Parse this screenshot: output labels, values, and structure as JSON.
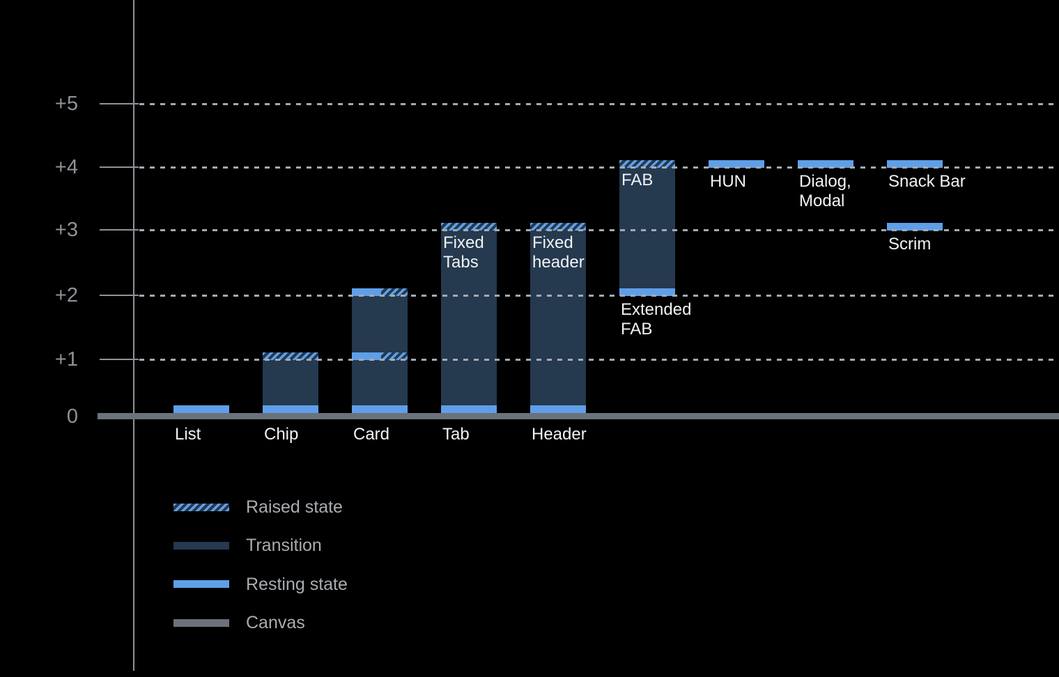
{
  "colors": {
    "background": "#000000",
    "resting_blue": "#5F9FE8",
    "transition_navy": "#25394F",
    "canvas_gray": "#6B727B",
    "axis_gray": "#8E939A",
    "grid_dash": "#A5AAB0",
    "label_white": "#F1F3F4",
    "axis_label_gray": "#8F9398",
    "legend_text_gray": "#A8ACB1"
  },
  "chart_data": {
    "type": "bar",
    "title": "",
    "xlabel": "",
    "ylabel": "",
    "ylim": [
      0,
      5
    ],
    "grid": "dotted horizontal gridlines at +1 through +5, solid canvas baseline at 0",
    "y_axis": {
      "ticks": [
        {
          "label": "+5",
          "level": 5
        },
        {
          "label": "+4",
          "level": 4
        },
        {
          "label": "+3",
          "level": 3
        },
        {
          "label": "+2",
          "level": 2
        },
        {
          "label": "+1",
          "level": 1
        },
        {
          "label": "0",
          "level": 0
        }
      ]
    },
    "components": [
      {
        "name": "list",
        "col": 0,
        "base_level": 0,
        "top_level": 0,
        "caption_lines": [
          "List"
        ],
        "caption_placement": "axis",
        "bands": [
          {
            "level": 0,
            "style": "resting"
          }
        ]
      },
      {
        "name": "chip",
        "col": 1,
        "base_level": 0,
        "top_level": 1,
        "caption_lines": [
          "Chip"
        ],
        "caption_placement": "axis",
        "bands": [
          {
            "level": 0,
            "style": "resting"
          },
          {
            "level": 1,
            "style": "raised"
          }
        ]
      },
      {
        "name": "card",
        "col": 2,
        "base_level": 0,
        "top_level": 2,
        "caption_lines": [
          "Card"
        ],
        "caption_placement": "axis",
        "bands": [
          {
            "level": 0,
            "style": "resting"
          },
          {
            "level": 1,
            "style": "split"
          },
          {
            "level": 2,
            "style": "split"
          }
        ]
      },
      {
        "name": "tab",
        "col": 3,
        "base_level": 0,
        "top_level": 3,
        "caption_lines": [
          "Tab"
        ],
        "caption_placement": "axis",
        "inner_label_lines": [
          "Fixed",
          "Tabs"
        ],
        "bands": [
          {
            "level": 0,
            "style": "resting"
          },
          {
            "level": 3,
            "style": "raised"
          }
        ]
      },
      {
        "name": "header",
        "col": 4,
        "base_level": 0,
        "top_level": 3,
        "caption_lines": [
          "Header"
        ],
        "caption_placement": "axis",
        "inner_label_lines": [
          "Fixed",
          "header"
        ],
        "bands": [
          {
            "level": 0,
            "style": "resting"
          },
          {
            "level": 3,
            "style": "raised"
          }
        ]
      },
      {
        "name": "extended-fab",
        "col": 5,
        "base_level": 2,
        "top_level": 4,
        "caption_lines": [
          "Extended",
          "FAB"
        ],
        "caption_placement": "below-bar",
        "inner_label_lines": [
          "FAB"
        ],
        "bands": [
          {
            "level": 2,
            "style": "resting"
          },
          {
            "level": 4,
            "style": "raised"
          }
        ]
      },
      {
        "name": "hun",
        "col": 6,
        "base_level": 4,
        "top_level": 4,
        "caption_lines": [
          "HUN"
        ],
        "caption_placement": "below-bar",
        "bands": [
          {
            "level": 4,
            "style": "resting"
          }
        ]
      },
      {
        "name": "dialog-modal",
        "col": 7,
        "base_level": 4,
        "top_level": 4,
        "caption_lines": [
          "Dialog,",
          "Modal"
        ],
        "caption_placement": "below-bar",
        "bands": [
          {
            "level": 4,
            "style": "resting"
          }
        ]
      },
      {
        "name": "snack-bar",
        "col": 8,
        "base_level": 4,
        "top_level": 4,
        "caption_lines": [
          "Snack Bar"
        ],
        "caption_placement": "below-bar",
        "bands": [
          {
            "level": 4,
            "style": "resting"
          }
        ]
      },
      {
        "name": "scrim",
        "col": 8,
        "base_level": 3,
        "top_level": 3,
        "caption_lines": [
          "Scrim"
        ],
        "caption_placement": "below-bar",
        "bands": [
          {
            "level": 3,
            "style": "resting"
          }
        ]
      }
    ],
    "legend": [
      {
        "style": "raised",
        "label": "Raised state"
      },
      {
        "style": "transition",
        "label": "Transition"
      },
      {
        "style": "resting",
        "label": "Resting state"
      },
      {
        "style": "canvas",
        "label": "Canvas"
      }
    ]
  }
}
